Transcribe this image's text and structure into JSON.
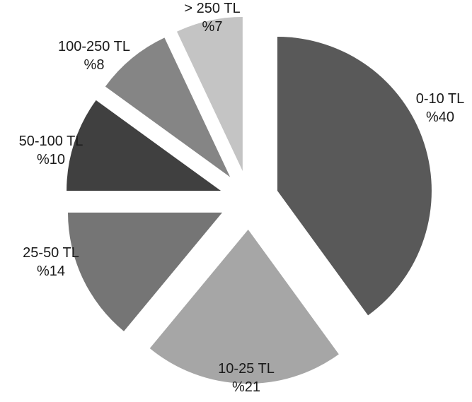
{
  "chart_data": {
    "type": "pie",
    "title": "",
    "exploded": true,
    "legend": "none",
    "slices": [
      {
        "category": "0-10 TL",
        "value": 40,
        "label": "%40",
        "color": "#595959"
      },
      {
        "category": "10-25 TL",
        "value": 21,
        "label": "%21",
        "color": "#a6a6a6"
      },
      {
        "category": "25-50 TL",
        "value": 14,
        "label": "%14",
        "color": "#757575"
      },
      {
        "category": "50-100 TL",
        "value": 10,
        "label": "%10",
        "color": "#404040"
      },
      {
        "category": "100-250 TL",
        "value": 8,
        "label": "%8",
        "color": "#858585"
      },
      {
        "category": "> 250 TL",
        "value": 7,
        "label": "%7",
        "color": "#c4c4c4"
      }
    ]
  }
}
